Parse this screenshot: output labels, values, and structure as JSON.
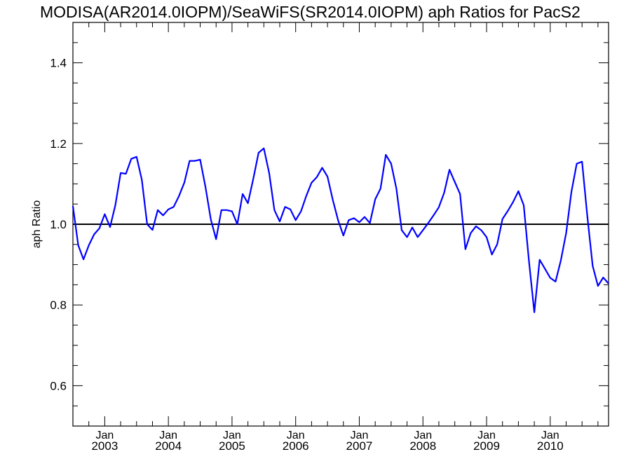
{
  "chart_data": {
    "type": "line",
    "title": "MODISA(AR2014.0IOPM)/SeaWiFS(SR2014.0IOPM)  aph Ratios for PacS2",
    "xlabel": "",
    "ylabel": "aph Ratio",
    "ylim": [
      0.5,
      1.5
    ],
    "xlim": [
      "2002-07",
      "2010-12"
    ],
    "yticks": [
      "0.6",
      "0.8",
      "1.0",
      "1.2",
      "1.4"
    ],
    "xticks": [
      {
        "month": "Jan",
        "year": "2003"
      },
      {
        "month": "Jan",
        "year": "2004"
      },
      {
        "month": "Jan",
        "year": "2005"
      },
      {
        "month": "Jan",
        "year": "2006"
      },
      {
        "month": "Jan",
        "year": "2007"
      },
      {
        "month": "Jan",
        "year": "2008"
      },
      {
        "month": "Jan",
        "year": "2009"
      },
      {
        "month": "Jan",
        "year": "2010"
      }
    ],
    "reference_line": 1.0,
    "grid": false,
    "series_color": "#0000ff",
    "reference_color": "#000000",
    "series": [
      {
        "x": [
          "2002-07",
          "2002-08",
          "2002-09",
          "2002-10",
          "2002-11",
          "2002-12",
          "2003-01",
          "2003-02",
          "2003-03",
          "2003-04",
          "2003-05",
          "2003-06",
          "2003-07",
          "2003-08",
          "2003-09",
          "2003-10",
          "2003-11",
          "2003-12",
          "2004-01",
          "2004-02",
          "2004-03",
          "2004-04",
          "2004-05",
          "2004-06",
          "2004-07",
          "2004-08",
          "2004-09",
          "2004-10",
          "2004-11",
          "2004-12",
          "2005-01",
          "2005-02",
          "2005-03",
          "2005-04",
          "2005-05",
          "2005-06",
          "2005-07",
          "2005-08",
          "2005-09",
          "2005-10",
          "2005-11",
          "2005-12",
          "2006-01",
          "2006-02",
          "2006-03",
          "2006-04",
          "2006-05",
          "2006-06",
          "2006-07",
          "2006-08",
          "2006-09",
          "2006-10",
          "2006-11",
          "2006-12",
          "2007-01",
          "2007-02",
          "2007-03",
          "2007-04",
          "2007-05",
          "2007-06",
          "2007-07",
          "2007-08",
          "2007-09",
          "2007-10",
          "2007-11",
          "2007-12",
          "2008-01",
          "2008-02",
          "2008-03",
          "2008-04",
          "2008-05",
          "2008-06",
          "2008-07",
          "2008-08",
          "2008-09",
          "2008-10",
          "2008-11",
          "2008-12",
          "2009-01",
          "2009-02",
          "2009-03",
          "2009-04",
          "2009-05",
          "2009-06",
          "2009-07",
          "2009-08",
          "2009-09",
          "2009-10",
          "2009-11",
          "2009-12",
          "2010-01",
          "2010-02",
          "2010-03",
          "2010-04",
          "2010-05",
          "2010-06",
          "2010-07",
          "2010-08",
          "2010-09",
          "2010-10",
          "2010-11",
          "2010-12"
        ],
        "values": [
          1.045,
          0.948,
          0.913,
          0.948,
          0.975,
          0.99,
          1.025,
          0.993,
          1.047,
          1.127,
          1.125,
          1.162,
          1.167,
          1.11,
          1.0,
          0.986,
          1.035,
          1.022,
          1.037,
          1.043,
          1.07,
          1.103,
          1.157,
          1.157,
          1.16,
          1.092,
          1.012,
          0.963,
          1.035,
          1.035,
          1.032,
          1.0,
          1.075,
          1.052,
          1.112,
          1.177,
          1.188,
          1.127,
          1.035,
          1.007,
          1.043,
          1.037,
          1.01,
          1.032,
          1.07,
          1.103,
          1.117,
          1.14,
          1.118,
          1.06,
          1.01,
          0.972,
          1.01,
          1.015,
          1.005,
          1.018,
          1.003,
          1.062,
          1.088,
          1.172,
          1.15,
          1.088,
          0.985,
          0.968,
          0.992,
          0.968,
          0.985,
          1.003,
          1.022,
          1.042,
          1.078,
          1.135,
          1.105,
          1.075,
          0.938,
          0.978,
          0.995,
          0.985,
          0.968,
          0.925,
          0.95,
          1.013,
          1.033,
          1.055,
          1.082,
          1.047,
          0.908,
          0.782,
          0.912,
          0.89,
          0.867,
          0.858,
          0.91,
          0.978,
          1.08,
          1.15,
          1.155,
          1.02,
          0.897,
          0.847,
          0.868,
          0.853
        ]
      }
    ]
  }
}
